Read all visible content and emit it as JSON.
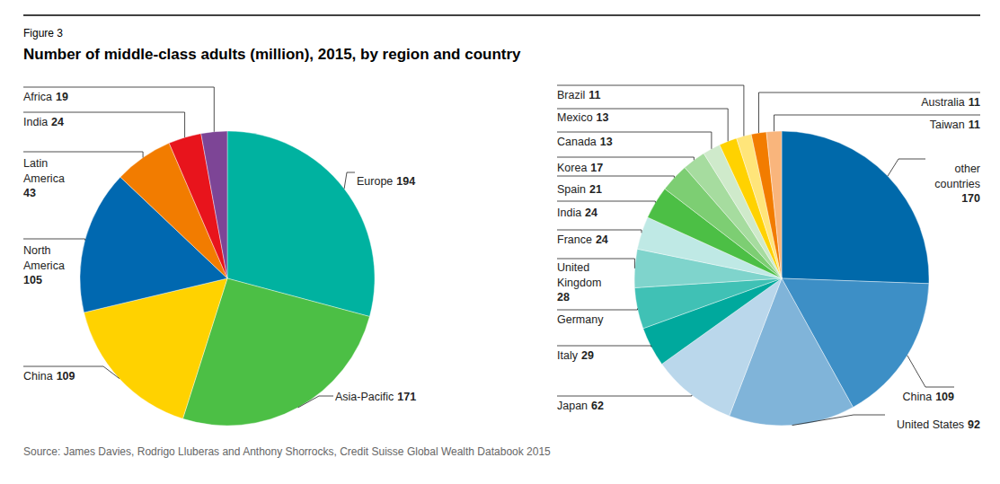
{
  "figure_label": "Figure 3",
  "title": "Number of middle-class adults (million), 2015, by region and country",
  "source": "Source: James Davies, Rodrigo Lluberas and Anthony Shorrocks, Credit Suisse Global Wealth Databook 2015",
  "chart_data": [
    {
      "type": "pie",
      "categories": [
        "Europe",
        "Asia-Pacific",
        "China",
        "North America",
        "Latin America",
        "India",
        "Africa"
      ],
      "values": [
        194,
        171,
        109,
        105,
        43,
        24,
        19
      ],
      "colors": [
        "#00b2a0",
        "#4cbf45",
        "#ffd200",
        "#0068b0",
        "#f27c00",
        "#e8141c",
        "#7d4596"
      ],
      "data_labels": true
    },
    {
      "type": "pie",
      "categories": [
        "other countries",
        "China",
        "United States",
        "Japan",
        "Italy",
        "Germany",
        "United Kingdom",
        "France",
        "India",
        "Spain",
        "Korea",
        "Canada",
        "Mexico",
        "Brazil",
        "Australia",
        "Taiwan"
      ],
      "values": [
        170,
        109,
        92,
        62,
        29,
        30,
        28,
        24,
        24,
        21,
        17,
        13,
        13,
        11,
        11,
        11
      ],
      "value_labels": [
        "170",
        "109",
        "92",
        "62",
        "29",
        null,
        "28",
        "24",
        "24",
        "21",
        "17",
        "13",
        "13",
        "11",
        "11",
        "11"
      ],
      "colors": [
        "#0069aa",
        "#3d8fc6",
        "#80b4d9",
        "#bad7eb",
        "#00a99d",
        "#40c1b5",
        "#7fd4cc",
        "#bfe9e5",
        "#4cbf45",
        "#7dce73",
        "#a6dc9f",
        "#cfeacb",
        "#ffd200",
        "#ffe57a",
        "#f27c00",
        "#f9b57c"
      ],
      "data_labels": true
    }
  ]
}
